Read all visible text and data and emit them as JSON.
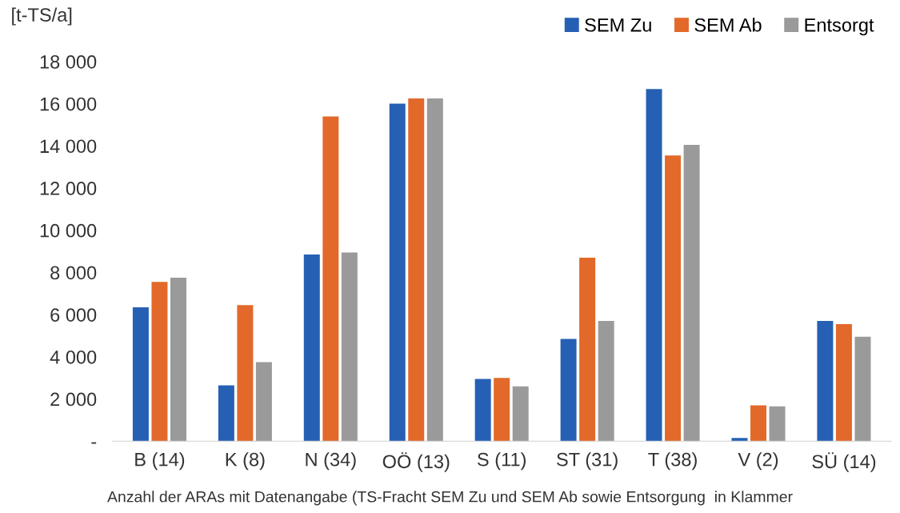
{
  "chart_data": {
    "type": "bar",
    "ylabel": "[t-TS/a]",
    "xlabel": "Anzahl der ARAs mit Datenangabe (TS-Fracht SEM Zu und SEM Ab sowie Entsorgung  in Klammer",
    "categories": [
      "B (14)",
      "K (8)",
      "N (34)",
      "OÖ (13)",
      "S (11)",
      "ST (31)",
      "T (38)",
      "V (2)",
      "SÜ (14)"
    ],
    "series": [
      {
        "name": "SEM Zu",
        "color": "#2660b4",
        "values": [
          6350,
          2650,
          8850,
          16000,
          2950,
          4850,
          16700,
          150,
          5700
        ]
      },
      {
        "name": "SEM Ab",
        "color": "#e2692a",
        "values": [
          7550,
          6450,
          15400,
          16250,
          3000,
          8700,
          13550,
          1700,
          5550
        ]
      },
      {
        "name": "Entsorgt",
        "color": "#9a9a9a",
        "values": [
          7750,
          3750,
          8950,
          16250,
          2600,
          5700,
          14050,
          1650,
          4950
        ]
      }
    ],
    "ylim": [
      0,
      18000
    ],
    "yticks": [
      {
        "value": 0,
        "label": "-"
      },
      {
        "value": 2000,
        "label": "2 000"
      },
      {
        "value": 4000,
        "label": "4 000"
      },
      {
        "value": 6000,
        "label": "6 000"
      },
      {
        "value": 8000,
        "label": "8 000"
      },
      {
        "value": 10000,
        "label": "10 000"
      },
      {
        "value": 12000,
        "label": "12 000"
      },
      {
        "value": 14000,
        "label": "14 000"
      },
      {
        "value": 16000,
        "label": "16 000"
      },
      {
        "value": 18000,
        "label": "18 000"
      }
    ],
    "grid": false,
    "legend": "top right"
  }
}
